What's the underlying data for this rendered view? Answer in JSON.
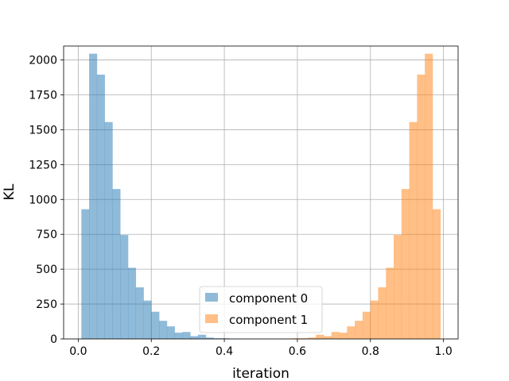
{
  "chart_data": {
    "type": "bar",
    "subtype": "overlapping-histogram",
    "title": "",
    "xlabel": "iteration",
    "ylabel": "KL",
    "xlim": [
      -0.04,
      1.04
    ],
    "ylim": [
      0,
      2100
    ],
    "xticks": [
      0.0,
      0.2,
      0.4,
      0.6,
      0.8,
      1.0
    ],
    "xtick_labels": [
      "0.0",
      "0.2",
      "0.4",
      "0.6",
      "0.8",
      "1.0"
    ],
    "yticks": [
      0,
      250,
      500,
      750,
      1000,
      1250,
      1500,
      1750,
      2000
    ],
    "ytick_labels": [
      "0",
      "250",
      "500",
      "750",
      "1000",
      "1250",
      "1500",
      "1750",
      "2000"
    ],
    "grid": true,
    "legend_position": "bottom-center",
    "bin_width": 0.0213,
    "series": [
      {
        "name": "component 0",
        "color": "#1f77b4",
        "alpha": 0.5,
        "bin_starts": [
          0.0085,
          0.0298,
          0.0511,
          0.0724,
          0.0937,
          0.115,
          0.1363,
          0.1576,
          0.1789,
          0.2002,
          0.2215,
          0.2428,
          0.2641,
          0.2854,
          0.3067,
          0.328,
          0.3493,
          0.3706,
          0.3919,
          0.4132
        ],
        "counts": [
          930,
          2045,
          1895,
          1555,
          1075,
          745,
          510,
          370,
          275,
          195,
          130,
          90,
          45,
          50,
          20,
          30,
          10,
          5,
          5,
          3
        ]
      },
      {
        "name": "component 1",
        "color": "#ff7f0e",
        "alpha": 0.5,
        "bin_starts": [
          0.5655,
          0.5868,
          0.6081,
          0.6294,
          0.6507,
          0.672,
          0.6933,
          0.7146,
          0.7359,
          0.7572,
          0.7785,
          0.7998,
          0.8211,
          0.8424,
          0.8637,
          0.885,
          0.9063,
          0.9276,
          0.9489,
          0.9702
        ],
        "counts": [
          3,
          5,
          5,
          10,
          30,
          20,
          50,
          45,
          90,
          130,
          195,
          275,
          370,
          510,
          745,
          1075,
          1555,
          1895,
          2045,
          930
        ]
      }
    ]
  }
}
